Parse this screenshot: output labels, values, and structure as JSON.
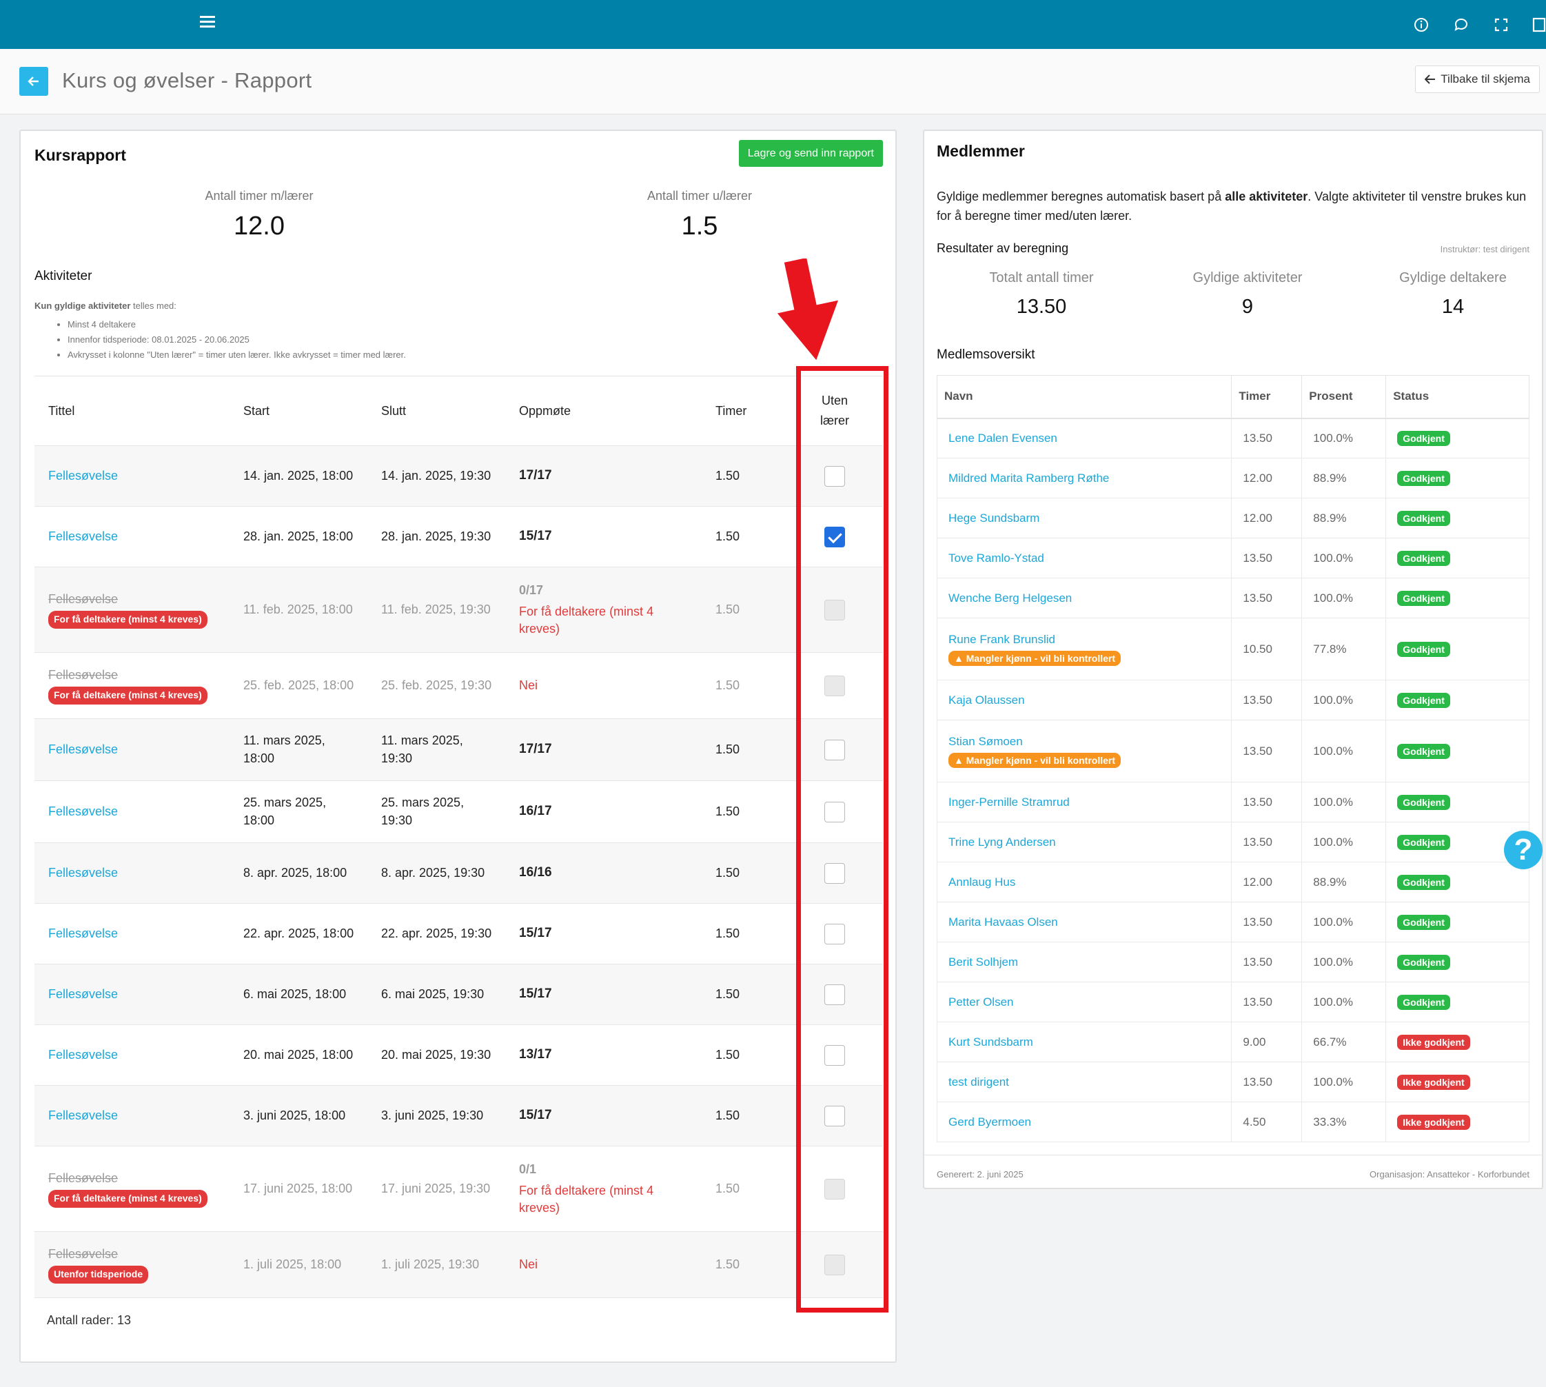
{
  "header": {
    "title": "Kurs og øvelser - Rapport",
    "back_link": "Tilbake til skjema"
  },
  "topbar_icons": [
    "menu-icon",
    "info-icon",
    "chat-icon",
    "fullscreen-icon",
    "panel-icon"
  ],
  "left": {
    "title": "Kursrapport",
    "save_button": "Lagre og send inn rapport",
    "stat_with": {
      "label": "Antall timer m/lærer",
      "value": "12.0"
    },
    "stat_without": {
      "label": "Antall timer u/lærer",
      "value": "1.5"
    },
    "activities_heading": "Aktiviteter",
    "rules_intro_bold": "Kun gyldige aktiviteter",
    "rules_intro_rest": " telles med:",
    "rules": [
      "Minst 4 deltakere",
      "Innenfor tidsperiode: 08.01.2025 - 20.06.2025",
      "Avkrysset i kolonne \"Uten lærer\" = timer uten lærer. Ikke avkrysset = timer med lærer."
    ],
    "columns": {
      "title": "Tittel",
      "start": "Start",
      "end": "Slutt",
      "attendance": "Oppmøte",
      "hours": "Timer",
      "no_teacher_1": "Uten",
      "no_teacher_2": "lærer"
    },
    "rows": [
      {
        "title": "Fellesøvelse",
        "start": "14. jan. 2025, 18:00",
        "end": "14. jan. 2025, 19:30",
        "att": "17/17",
        "hours": "1.50",
        "state": "unchecked"
      },
      {
        "title": "Fellesøvelse",
        "start": "28. jan. 2025, 18:00",
        "end": "28. jan. 2025, 19:30",
        "att": "15/17",
        "hours": "1.50",
        "state": "checked"
      },
      {
        "title": "Fellesøvelse",
        "tag": "For få deltakere (minst 4 kreves)",
        "start": "11. feb. 2025, 18:00",
        "end": "11. feb. 2025, 19:30",
        "att": "0/17",
        "att_note": "For få deltakere (minst 4 kreves)",
        "hours": "1.50",
        "state": "disabled"
      },
      {
        "title": "Fellesøvelse",
        "tag": "For få deltakere (minst 4 kreves)",
        "start": "25. feb. 2025, 18:00",
        "end": "25. feb. 2025, 19:30",
        "att_no": "Nei",
        "hours": "1.50",
        "state": "disabled"
      },
      {
        "title": "Fellesøvelse",
        "start": "11. mars 2025, 18:00",
        "end": "11. mars 2025, 19:30",
        "att": "17/17",
        "hours": "1.50",
        "state": "unchecked"
      },
      {
        "title": "Fellesøvelse",
        "start": "25. mars 2025, 18:00",
        "end": "25. mars 2025, 19:30",
        "att": "16/17",
        "hours": "1.50",
        "state": "unchecked"
      },
      {
        "title": "Fellesøvelse",
        "start": "8. apr. 2025, 18:00",
        "end": "8. apr. 2025, 19:30",
        "att": "16/16",
        "hours": "1.50",
        "state": "unchecked"
      },
      {
        "title": "Fellesøvelse",
        "start": "22. apr. 2025, 18:00",
        "end": "22. apr. 2025, 19:30",
        "att": "15/17",
        "hours": "1.50",
        "state": "unchecked"
      },
      {
        "title": "Fellesøvelse",
        "start": "6. mai 2025, 18:00",
        "end": "6. mai 2025, 19:30",
        "att": "15/17",
        "hours": "1.50",
        "state": "unchecked"
      },
      {
        "title": "Fellesøvelse",
        "start": "20. mai 2025, 18:00",
        "end": "20. mai 2025, 19:30",
        "att": "13/17",
        "hours": "1.50",
        "state": "unchecked"
      },
      {
        "title": "Fellesøvelse",
        "start": "3. juni 2025, 18:00",
        "end": "3. juni 2025, 19:30",
        "att": "15/17",
        "hours": "1.50",
        "state": "unchecked"
      },
      {
        "title": "Fellesøvelse",
        "tag": "For få deltakere (minst 4 kreves)",
        "start": "17. juni 2025, 18:00",
        "end": "17. juni 2025, 19:30",
        "att": "0/1",
        "att_note": "For få deltakere (minst 4 kreves)",
        "hours": "1.50",
        "state": "disabled"
      },
      {
        "title": "Fellesøvelse",
        "tag": "Utenfor tidsperiode",
        "start": "1. juli 2025, 18:00",
        "end": "1. juli 2025, 19:30",
        "att_no": "Nei",
        "hours": "1.50",
        "state": "disabled"
      }
    ],
    "row_count": "Antall rader: 13"
  },
  "right": {
    "title": "Medlemmer",
    "intro_pre": "Gyldige medlemmer beregnes automatisk basert på ",
    "intro_bold": "alle aktiviteter",
    "intro_post": ". Valgte aktiviteter til venstre brukes kun for å beregne timer med/uten lærer.",
    "results_heading": "Resultater av beregning",
    "instructor": "Instruktør: test dirigent",
    "stats": [
      {
        "label": "Totalt antall timer",
        "value": "13.50"
      },
      {
        "label": "Gyldige aktiviteter",
        "value": "9"
      },
      {
        "label": "Gyldige deltakere",
        "value": "14"
      }
    ],
    "overview_heading": "Medlemsoversikt",
    "columns": {
      "name": "Navn",
      "hours": "Timer",
      "percent": "Prosent",
      "status": "Status"
    },
    "members": [
      {
        "name": "Lene Dalen Evensen",
        "hours": "13.50",
        "pct": "100.0%",
        "status": "Godkjent",
        "ok": true
      },
      {
        "name": "Mildred Marita Ramberg Røthe",
        "hours": "12.00",
        "pct": "88.9%",
        "status": "Godkjent",
        "ok": true
      },
      {
        "name": "Hege Sundsbarm",
        "hours": "12.00",
        "pct": "88.9%",
        "status": "Godkjent",
        "ok": true
      },
      {
        "name": "Tove Ramlo-Ystad",
        "hours": "13.50",
        "pct": "100.0%",
        "status": "Godkjent",
        "ok": true
      },
      {
        "name": "Wenche Berg Helgesen",
        "hours": "13.50",
        "pct": "100.0%",
        "status": "Godkjent",
        "ok": true
      },
      {
        "name": "Rune Frank Brunslid",
        "warn": "Mangler kjønn - vil bli kontrollert",
        "hours": "10.50",
        "pct": "77.8%",
        "status": "Godkjent",
        "ok": true
      },
      {
        "name": "Kaja Olaussen",
        "hours": "13.50",
        "pct": "100.0%",
        "status": "Godkjent",
        "ok": true
      },
      {
        "name": "Stian Sømoen",
        "warn": "Mangler kjønn - vil bli kontrollert",
        "hours": "13.50",
        "pct": "100.0%",
        "status": "Godkjent",
        "ok": true
      },
      {
        "name": "Inger-Pernille Stramrud",
        "hours": "13.50",
        "pct": "100.0%",
        "status": "Godkjent",
        "ok": true
      },
      {
        "name": "Trine Lyng Andersen",
        "hours": "13.50",
        "pct": "100.0%",
        "status": "Godkjent",
        "ok": true
      },
      {
        "name": "Annlaug Hus",
        "hours": "12.00",
        "pct": "88.9%",
        "status": "Godkjent",
        "ok": true
      },
      {
        "name": "Marita Havaas Olsen",
        "hours": "13.50",
        "pct": "100.0%",
        "status": "Godkjent",
        "ok": true
      },
      {
        "name": "Berit Solhjem",
        "hours": "13.50",
        "pct": "100.0%",
        "status": "Godkjent",
        "ok": true
      },
      {
        "name": "Petter Olsen",
        "hours": "13.50",
        "pct": "100.0%",
        "status": "Godkjent",
        "ok": true
      },
      {
        "name": "Kurt Sundsbarm",
        "hours": "9.00",
        "pct": "66.7%",
        "status": "Ikke godkjent",
        "ok": false
      },
      {
        "name": "test dirigent",
        "hours": "13.50",
        "pct": "100.0%",
        "status": "Ikke godkjent",
        "ok": false
      },
      {
        "name": "Gerd Byermoen",
        "hours": "4.50",
        "pct": "33.3%",
        "status": "Ikke godkjent",
        "ok": false
      }
    ],
    "footer_left": "Generert: 2. juni 2025",
    "footer_right": "Organisasjon: Ansattekor - Korforbundet"
  },
  "help_icon": "?"
}
